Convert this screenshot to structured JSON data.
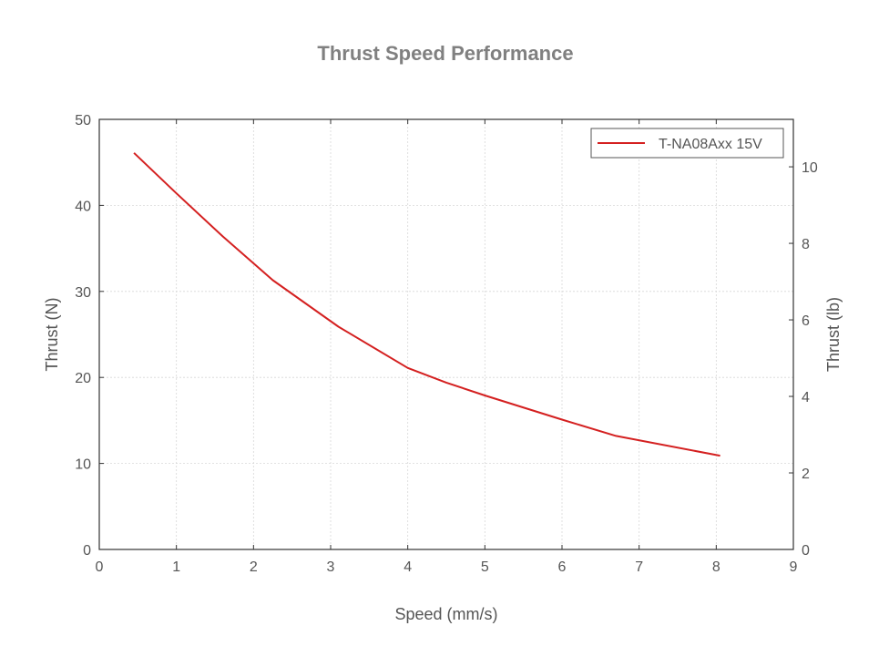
{
  "chart_data": {
    "type": "line",
    "title": "Thrust Speed Performance",
    "xlabel": "Speed (mm/s)",
    "ylabel": "Thrust (N)",
    "y2label": "Thrust (lb)",
    "xlim": [
      0,
      9
    ],
    "ylim": [
      0,
      50
    ],
    "y2lim": [
      0,
      11.24
    ],
    "x_ticks": [
      0,
      1,
      2,
      3,
      4,
      5,
      6,
      7,
      8,
      9
    ],
    "y_ticks": [
      0,
      10,
      20,
      30,
      40,
      50
    ],
    "y2_ticks": [
      0,
      2,
      4,
      6,
      8,
      10
    ],
    "grid": true,
    "legend_position": "top-right",
    "series": [
      {
        "name": "T-NA08Axx 15V",
        "color": "#d42020",
        "x": [
          0.45,
          1.0,
          1.6,
          2.25,
          3.1,
          4.0,
          4.5,
          5.0,
          6.0,
          6.7,
          8.05
        ],
        "y": [
          46.1,
          41.4,
          36.4,
          31.3,
          25.9,
          21.1,
          19.4,
          17.9,
          15.1,
          13.2,
          10.9
        ]
      }
    ]
  }
}
